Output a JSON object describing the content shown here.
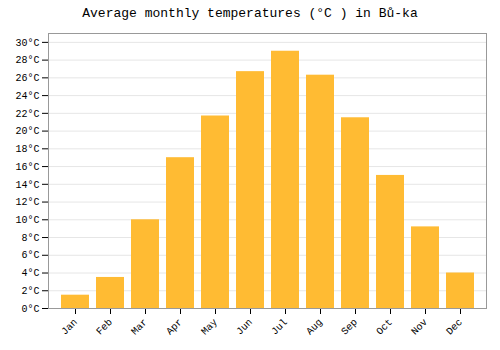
{
  "chart_data": {
    "type": "bar",
    "title": "Average monthly temperatures (°C ) in Bů-ka",
    "categories": [
      "Jan",
      "Feb",
      "Mar",
      "Apr",
      "May",
      "Jun",
      "Jul",
      "Aug",
      "Sep",
      "Oct",
      "Nov",
      "Dec"
    ],
    "values": [
      1.5,
      3.5,
      10.0,
      17.0,
      21.7,
      26.7,
      29.0,
      26.3,
      21.5,
      15.0,
      9.2,
      4.0
    ],
    "color": "#FFBB33",
    "ylim": [
      0,
      31
    ],
    "yticks": [
      {
        "value": 0,
        "label": "0°C"
      },
      {
        "value": 2,
        "label": "2°C"
      },
      {
        "value": 4,
        "label": "4°C"
      },
      {
        "value": 6,
        "label": "6°C"
      },
      {
        "value": 8,
        "label": "8°C"
      },
      {
        "value": 10,
        "label": "10°C"
      },
      {
        "value": 12,
        "label": "12°C"
      },
      {
        "value": 14,
        "label": "14°C"
      },
      {
        "value": 16,
        "label": "16°C"
      },
      {
        "value": 18,
        "label": "18°C"
      },
      {
        "value": 20,
        "label": "20°C"
      },
      {
        "value": 22,
        "label": "22°C"
      },
      {
        "value": 24,
        "label": "24°C"
      },
      {
        "value": 26,
        "label": "26°C"
      },
      {
        "value": 28,
        "label": "28°C"
      },
      {
        "value": 30,
        "label": "30°C"
      }
    ],
    "grid": true
  }
}
